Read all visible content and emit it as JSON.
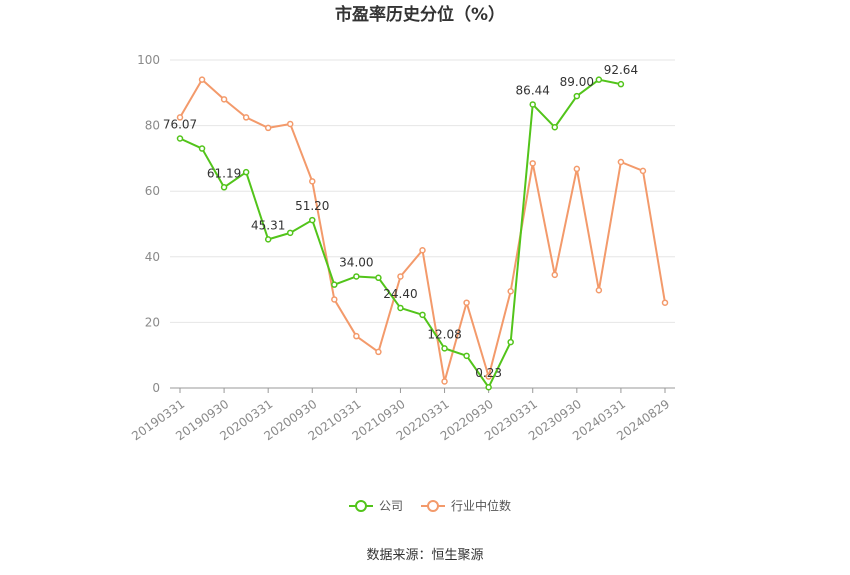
{
  "chart_data": {
    "type": "line",
    "title": "市盈率历史分位（%）",
    "xlabel": "",
    "ylabel": "",
    "ylim": [
      0,
      100
    ],
    "yticks": [
      0,
      20,
      40,
      60,
      80,
      100
    ],
    "grid": "horizontal",
    "legend_position": "bottom-center",
    "x": [
      "20190331",
      "20190630",
      "20190930",
      "20191231",
      "20200331",
      "20200630",
      "20200930",
      "20201231",
      "20210331",
      "20210630",
      "20210930",
      "20211231",
      "20220331",
      "20220630",
      "20220930",
      "20221231",
      "20230331",
      "20230630",
      "20230930",
      "20231231",
      "20240331",
      "20240630",
      "20240829"
    ],
    "x_tick_labels": [
      "20190331",
      "20190930",
      "20200331",
      "20200930",
      "20210331",
      "20210930",
      "20220331",
      "20220930",
      "20230331",
      "20230930",
      "20240331",
      "20240829"
    ],
    "x_tick_indices": [
      0,
      2,
      4,
      6,
      8,
      10,
      12,
      14,
      16,
      18,
      20,
      22
    ],
    "series": [
      {
        "name": "公司",
        "color": "#52c41a",
        "values": [
          76.07,
          73.0,
          61.19,
          65.8,
          45.31,
          47.3,
          51.2,
          31.5,
          34.0,
          33.6,
          24.4,
          22.3,
          12.08,
          9.8,
          0.23,
          14.0,
          86.44,
          79.5,
          89.0,
          94.0,
          92.64,
          null,
          null
        ],
        "data_labels": [
          {
            "index": 0,
            "text": "76.07"
          },
          {
            "index": 2,
            "text": "61.19"
          },
          {
            "index": 4,
            "text": "45.31"
          },
          {
            "index": 6,
            "text": "51.20"
          },
          {
            "index": 8,
            "text": "34.00"
          },
          {
            "index": 10,
            "text": "24.40"
          },
          {
            "index": 12,
            "text": "12.08"
          },
          {
            "index": 14,
            "text": "0.23"
          },
          {
            "index": 16,
            "text": "86.44"
          },
          {
            "index": 18,
            "text": "89.00"
          },
          {
            "index": 20,
            "text": "92.64"
          }
        ]
      },
      {
        "name": "行业中位数",
        "color": "#f39a6b",
        "values": [
          82.5,
          94.0,
          88.0,
          82.5,
          79.3,
          80.5,
          63.0,
          27.0,
          15.8,
          11.0,
          34.0,
          42.0,
          2.0,
          26.0,
          3.5,
          29.5,
          68.5,
          34.5,
          66.8,
          29.8,
          68.9,
          66.2,
          26.0
        ]
      }
    ],
    "source_text": "数据来源：恒生聚源"
  }
}
